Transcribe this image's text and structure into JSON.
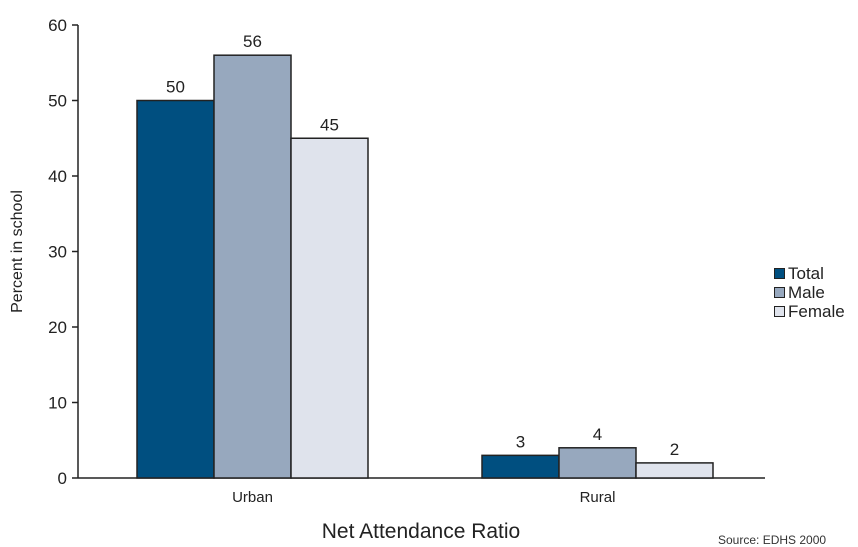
{
  "chart_data": {
    "type": "bar",
    "categories": [
      "Urban",
      "Rural"
    ],
    "series": [
      {
        "name": "Total",
        "values": [
          50,
          3
        ],
        "color": "#004f80"
      },
      {
        "name": "Male",
        "values": [
          56,
          4
        ],
        "color": "#97a8be"
      },
      {
        "name": "Female",
        "values": [
          45,
          2
        ],
        "color": "#dfe3ec"
      }
    ],
    "xlabel": "Net Attendance Ratio",
    "ylabel": "Percent in school",
    "ylim": [
      0,
      60
    ],
    "yticks": [
      "0",
      "10",
      "20",
      "30",
      "40",
      "50",
      "60"
    ],
    "grid": false,
    "legend_position": "right",
    "source": "Source: EDHS 2000"
  }
}
